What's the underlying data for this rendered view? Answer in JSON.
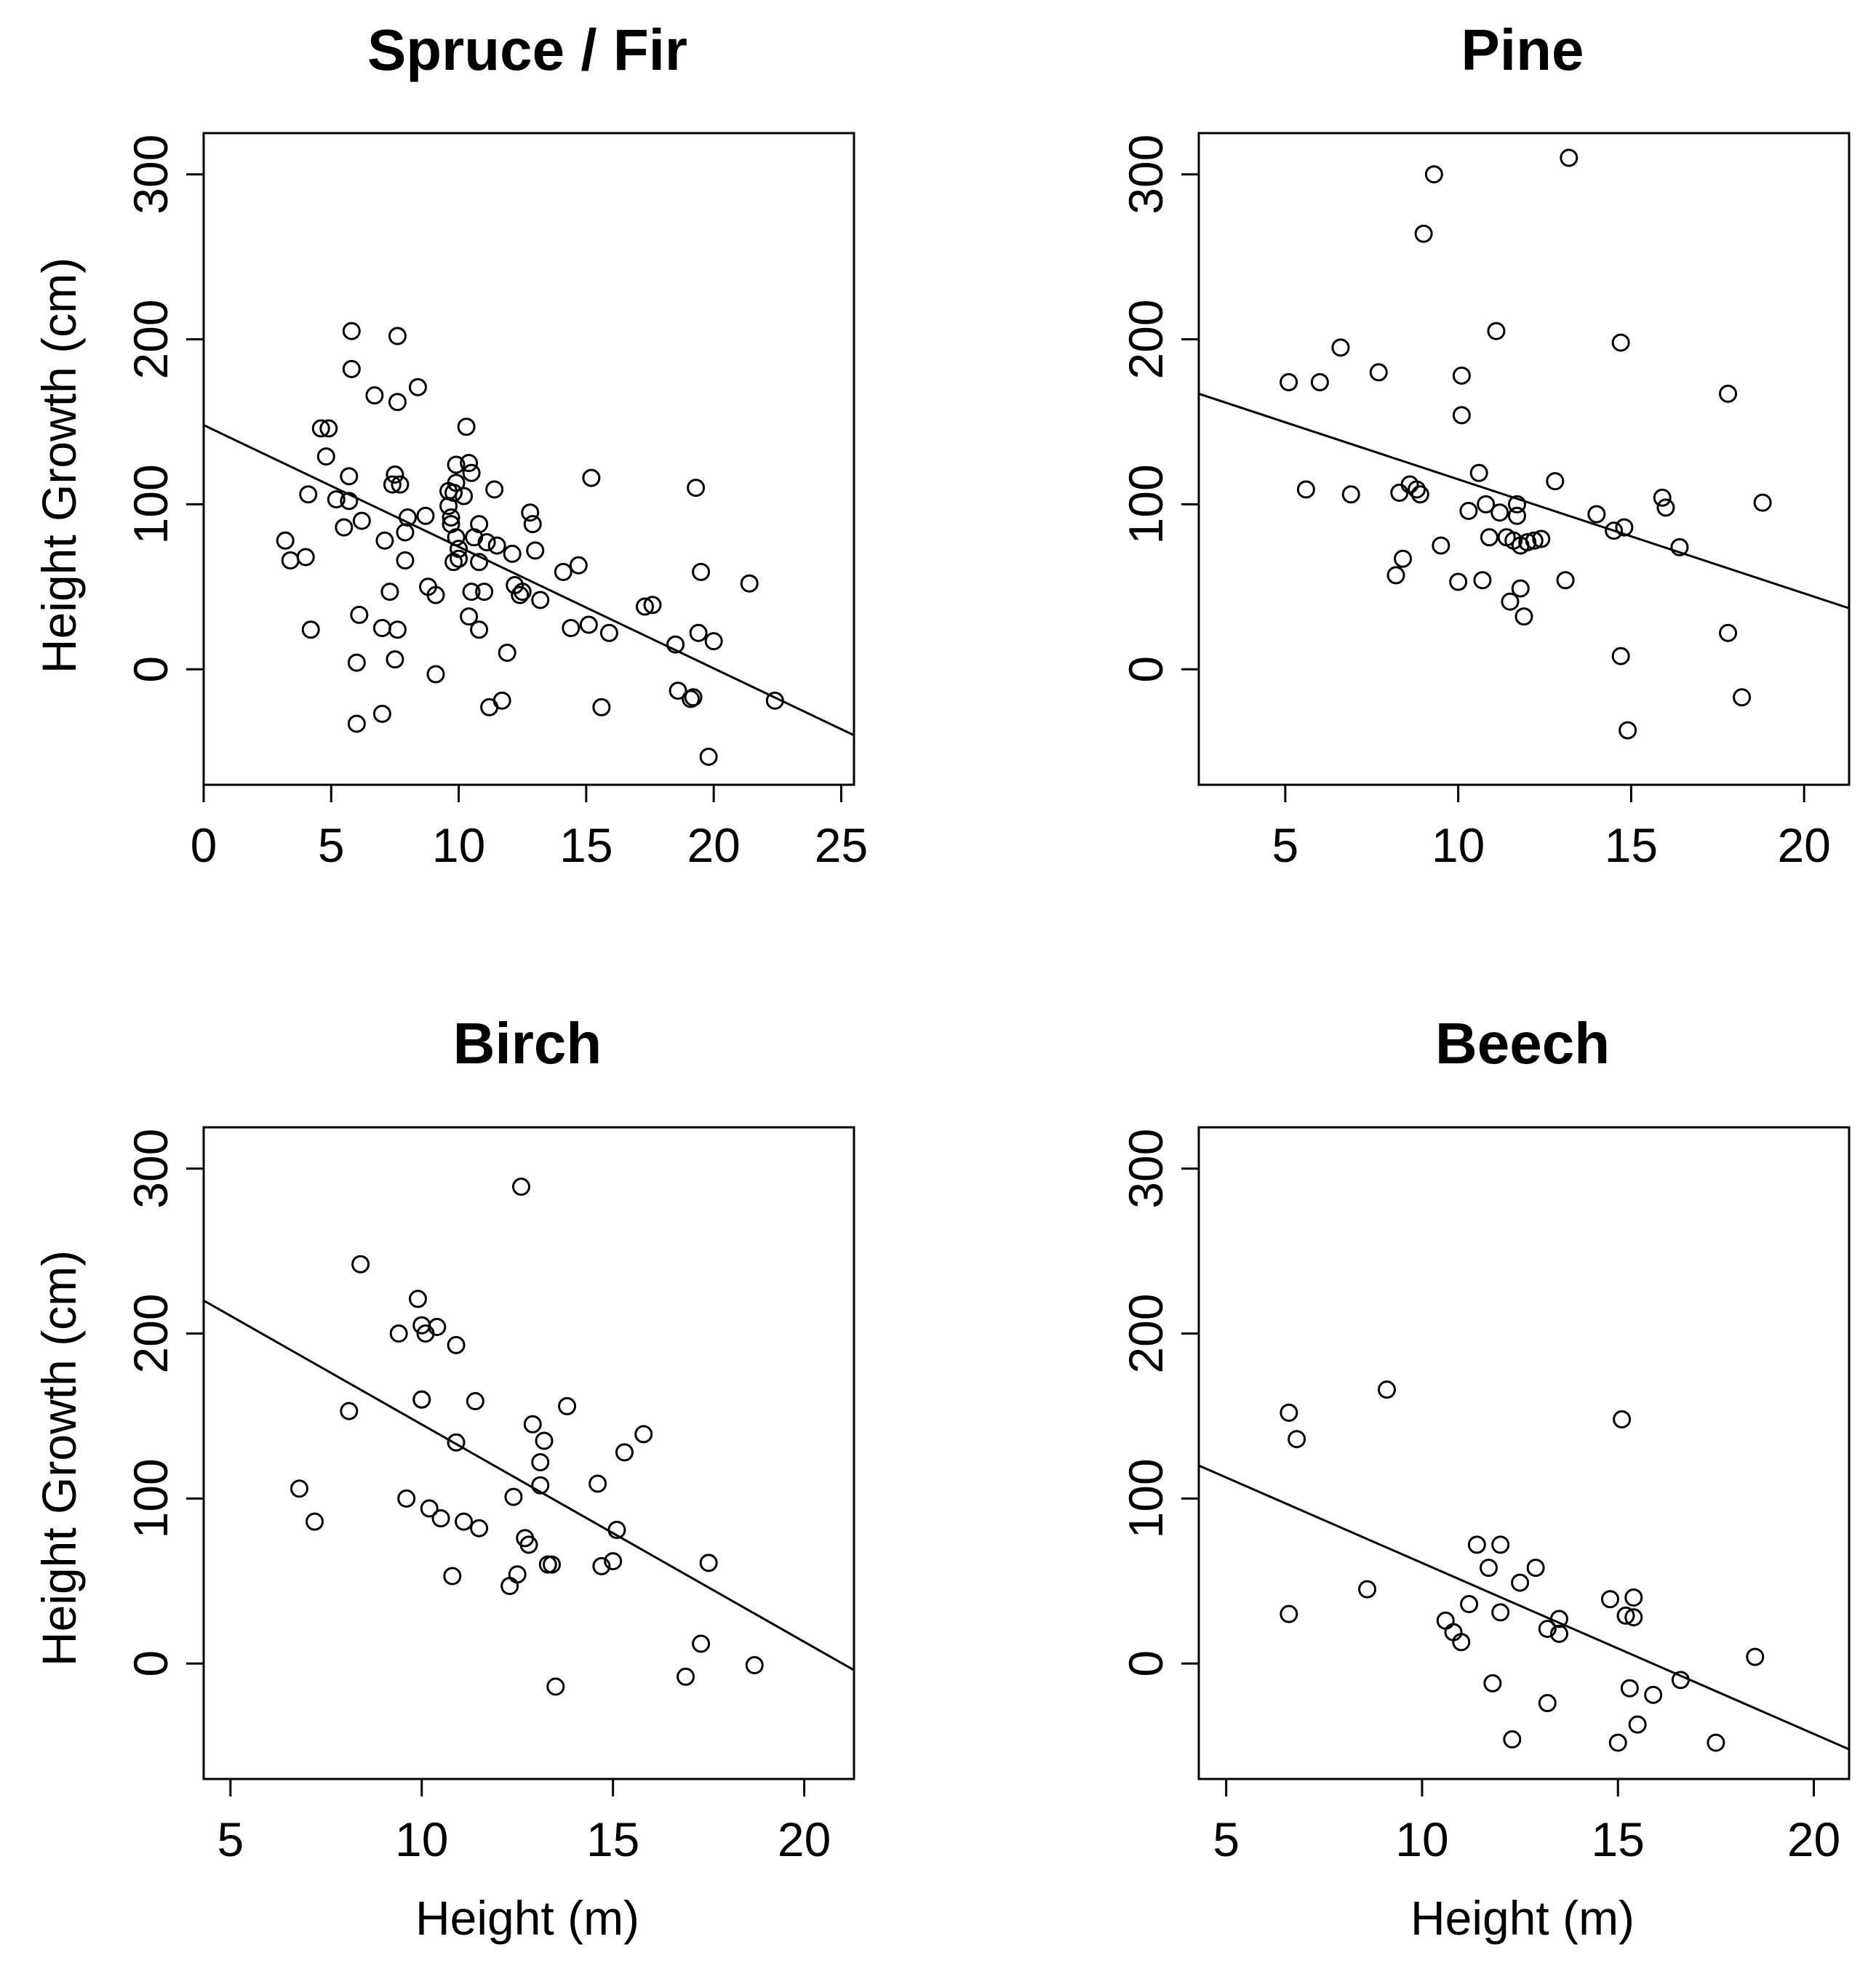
{
  "chart_data": [
    {
      "type": "scatter",
      "title": "Spruce / Fir",
      "xlabel": "",
      "ylabel": "Height Growth (cm)",
      "xlim": [
        0,
        25.5
      ],
      "ylim": [
        -70,
        325
      ],
      "xticks": [
        0,
        5,
        10,
        15,
        20,
        25
      ],
      "yticks": [
        0,
        100,
        200,
        300
      ],
      "grid": false,
      "fit_line": {
        "x": [
          0,
          25.5
        ],
        "y": [
          148,
          -40
        ]
      },
      "points": [
        [
          3.2,
          78
        ],
        [
          3.4,
          66
        ],
        [
          4,
          68
        ],
        [
          4.2,
          24
        ],
        [
          4.1,
          106
        ],
        [
          4.6,
          146
        ],
        [
          4.9,
          146
        ],
        [
          4.8,
          129
        ],
        [
          5.2,
          103
        ],
        [
          5.5,
          86
        ],
        [
          5.7,
          102
        ],
        [
          5.7,
          117
        ],
        [
          5.8,
          182
        ],
        [
          5.8,
          205
        ],
        [
          6,
          4
        ],
        [
          6,
          -33
        ],
        [
          6.1,
          33
        ],
        [
          6.2,
          90
        ],
        [
          6.7,
          166
        ],
        [
          7,
          25
        ],
        [
          7,
          -27
        ],
        [
          7.1,
          78
        ],
        [
          7.3,
          47
        ],
        [
          7.4,
          112
        ],
        [
          7.5,
          118
        ],
        [
          7.5,
          6
        ],
        [
          7.6,
          202
        ],
        [
          7.6,
          162
        ],
        [
          7.7,
          112
        ],
        [
          7.6,
          24
        ],
        [
          7.9,
          66
        ],
        [
          7.9,
          83
        ],
        [
          8,
          92
        ],
        [
          8.4,
          171
        ],
        [
          8.7,
          93
        ],
        [
          8.8,
          50
        ],
        [
          9.1,
          45
        ],
        [
          9.1,
          -3
        ],
        [
          9.6,
          99
        ],
        [
          9.6,
          108
        ],
        [
          9.7,
          92
        ],
        [
          9.7,
          88
        ],
        [
          9.8,
          65
        ],
        [
          9.8,
          107
        ],
        [
          9.9,
          113
        ],
        [
          9.9,
          124
        ],
        [
          9.9,
          80
        ],
        [
          10,
          73
        ],
        [
          10,
          67
        ],
        [
          10.2,
          105
        ],
        [
          10.3,
          147
        ],
        [
          10.4,
          125
        ],
        [
          10.4,
          32
        ],
        [
          10.5,
          119
        ],
        [
          10.5,
          47
        ],
        [
          10.6,
          80
        ],
        [
          10.8,
          88
        ],
        [
          10.8,
          24
        ],
        [
          10.8,
          65
        ],
        [
          11,
          47
        ],
        [
          11.1,
          77
        ],
        [
          11.2,
          -23
        ],
        [
          11.4,
          109
        ],
        [
          11.5,
          75
        ],
        [
          11.7,
          -19
        ],
        [
          11.9,
          10
        ],
        [
          12.1,
          70
        ],
        [
          12.2,
          51
        ],
        [
          12.4,
          45
        ],
        [
          12.5,
          47
        ],
        [
          12.8,
          95
        ],
        [
          12.9,
          88
        ],
        [
          13,
          72
        ],
        [
          13.2,
          42
        ],
        [
          14.1,
          59
        ],
        [
          14.4,
          25
        ],
        [
          14.7,
          63
        ],
        [
          15.1,
          27
        ],
        [
          15.2,
          116
        ],
        [
          15.6,
          -23
        ],
        [
          15.9,
          22
        ],
        [
          17.3,
          38
        ],
        [
          17.6,
          39
        ],
        [
          18.5,
          15
        ],
        [
          18.6,
          -13
        ],
        [
          19.1,
          -18
        ],
        [
          19.2,
          -17
        ],
        [
          19.3,
          110
        ],
        [
          19.4,
          22
        ],
        [
          19.5,
          59
        ],
        [
          19.8,
          -53
        ],
        [
          20,
          17
        ],
        [
          21.4,
          52
        ],
        [
          22.4,
          -19
        ]
      ]
    },
    {
      "type": "scatter",
      "title": "Pine",
      "xlabel": "",
      "ylabel": "",
      "xlim": [
        2.5,
        21.3
      ],
      "ylim": [
        -70,
        325
      ],
      "xticks": [
        5,
        10,
        15,
        20
      ],
      "yticks": [
        0,
        100,
        200,
        300
      ],
      "grid": false,
      "fit_line": {
        "x": [
          2.5,
          21.3
        ],
        "y": [
          167,
          37
        ]
      },
      "points": [
        [
          5.1,
          174
        ],
        [
          5.6,
          109
        ],
        [
          6,
          174
        ],
        [
          6.6,
          195
        ],
        [
          6.9,
          106
        ],
        [
          7.7,
          180
        ],
        [
          8.2,
          57
        ],
        [
          8.3,
          107
        ],
        [
          8.4,
          67
        ],
        [
          8.6,
          112
        ],
        [
          8.8,
          109
        ],
        [
          8.9,
          106
        ],
        [
          9,
          264
        ],
        [
          9.3,
          300
        ],
        [
          9.5,
          75
        ],
        [
          10,
          53
        ],
        [
          10.1,
          178
        ],
        [
          10.1,
          154
        ],
        [
          10.3,
          96
        ],
        [
          10.6,
          119
        ],
        [
          10.7,
          54
        ],
        [
          10.8,
          100
        ],
        [
          10.9,
          80
        ],
        [
          11.1,
          205
        ],
        [
          11.2,
          95
        ],
        [
          11.4,
          80
        ],
        [
          11.5,
          41
        ],
        [
          11.6,
          78
        ],
        [
          11.7,
          93
        ],
        [
          11.7,
          100
        ],
        [
          11.8,
          75
        ],
        [
          11.8,
          49
        ],
        [
          11.9,
          32
        ],
        [
          12,
          77
        ],
        [
          12.2,
          78
        ],
        [
          12.4,
          79
        ],
        [
          12.8,
          114
        ],
        [
          13.1,
          54
        ],
        [
          13.2,
          310
        ],
        [
          14,
          94
        ],
        [
          14.5,
          84
        ],
        [
          14.7,
          198
        ],
        [
          14.7,
          8
        ],
        [
          14.8,
          86
        ],
        [
          14.9,
          -37
        ],
        [
          15.9,
          104
        ],
        [
          16,
          98
        ],
        [
          16.4,
          74
        ],
        [
          17.8,
          167
        ],
        [
          17.8,
          22
        ],
        [
          18.2,
          -17
        ],
        [
          18.8,
          101
        ]
      ]
    },
    {
      "type": "scatter",
      "title": "Birch",
      "xlabel": "Height (m)",
      "ylabel": "Height Growth (cm)",
      "xlim": [
        4.3,
        21.3
      ],
      "ylim": [
        -70,
        325
      ],
      "xticks": [
        5,
        10,
        15,
        20
      ],
      "yticks": [
        0,
        100,
        200,
        300
      ],
      "grid": false,
      "fit_line": {
        "x": [
          4.3,
          21.3
        ],
        "y": [
          220,
          -4
        ]
      },
      "points": [
        [
          6.8,
          106
        ],
        [
          7.2,
          86
        ],
        [
          8.1,
          153
        ],
        [
          8.4,
          242
        ],
        [
          9.4,
          200
        ],
        [
          9.6,
          100
        ],
        [
          9.9,
          221
        ],
        [
          10,
          160
        ],
        [
          10,
          205
        ],
        [
          10,
          160
        ],
        [
          10.1,
          200
        ],
        [
          10.2,
          94
        ],
        [
          10.4,
          204
        ],
        [
          10.5,
          88
        ],
        [
          10.8,
          53
        ],
        [
          10.9,
          134
        ],
        [
          10.9,
          193
        ],
        [
          11.1,
          86
        ],
        [
          11.4,
          159
        ],
        [
          11.5,
          82
        ],
        [
          12.3,
          47
        ],
        [
          12.4,
          101
        ],
        [
          12.5,
          54
        ],
        [
          12.6,
          289
        ],
        [
          12.7,
          76
        ],
        [
          12.8,
          72
        ],
        [
          12.9,
          145
        ],
        [
          13.1,
          122
        ],
        [
          13.1,
          108
        ],
        [
          13.2,
          135
        ],
        [
          13.3,
          60
        ],
        [
          13.4,
          60
        ],
        [
          13.5,
          -14
        ],
        [
          13.8,
          156
        ],
        [
          14.6,
          109
        ],
        [
          14.7,
          59
        ],
        [
          15,
          62
        ],
        [
          15.1,
          81
        ],
        [
          15.3,
          128
        ],
        [
          15.8,
          139
        ],
        [
          16.9,
          -8
        ],
        [
          17.3,
          12
        ],
        [
          17.5,
          61
        ],
        [
          18.7,
          -1
        ]
      ]
    },
    {
      "type": "scatter",
      "title": "Beech",
      "xlabel": "Height (m)",
      "ylabel": "",
      "xlim": [
        4.3,
        20.9
      ],
      "ylim": [
        -70,
        325
      ],
      "xticks": [
        5,
        10,
        15,
        20
      ],
      "yticks": [
        0,
        100,
        200,
        300
      ],
      "grid": false,
      "fit_line": {
        "x": [
          4.3,
          20.9
        ],
        "y": [
          120,
          -52
        ]
      },
      "points": [
        [
          6.6,
          152
        ],
        [
          6.6,
          30
        ],
        [
          6.8,
          136
        ],
        [
          8.6,
          45
        ],
        [
          9.1,
          166
        ],
        [
          10.6,
          26
        ],
        [
          10.8,
          19
        ],
        [
          11,
          13
        ],
        [
          11.2,
          36
        ],
        [
          11.4,
          72
        ],
        [
          11.7,
          58
        ],
        [
          11.8,
          -12
        ],
        [
          12,
          72
        ],
        [
          12,
          31
        ],
        [
          12.3,
          -46
        ],
        [
          12.5,
          49
        ],
        [
          12.9,
          58
        ],
        [
          13.2,
          -24
        ],
        [
          13.2,
          21
        ],
        [
          13.5,
          27
        ],
        [
          13.5,
          18
        ],
        [
          14.8,
          39
        ],
        [
          15,
          -48
        ],
        [
          15.1,
          148
        ],
        [
          15.2,
          29
        ],
        [
          15.3,
          -15
        ],
        [
          15.4,
          28
        ],
        [
          15.4,
          40
        ],
        [
          15.5,
          -37
        ],
        [
          15.9,
          -19
        ],
        [
          16.6,
          -10
        ],
        [
          17.5,
          -48
        ],
        [
          18.5,
          4
        ]
      ]
    }
  ]
}
